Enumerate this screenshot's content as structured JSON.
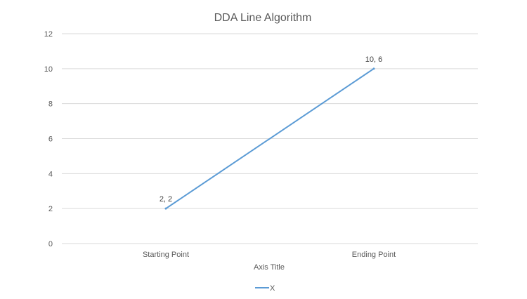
{
  "chart_data": {
    "type": "line",
    "title": "DDA Line Algorithm",
    "categories": [
      "Starting Point",
      "Ending Point"
    ],
    "series": [
      {
        "name": "X",
        "values": [
          2,
          10
        ],
        "data_labels": [
          "2, 2",
          "10, 6"
        ],
        "color": "#5b9bd5"
      }
    ],
    "xlabel": "Axis Title",
    "ylabel": "",
    "ylim": [
      0,
      12
    ],
    "yticks": [
      0,
      2,
      4,
      6,
      8,
      10,
      12
    ],
    "grid": true,
    "legend": "bottom"
  }
}
